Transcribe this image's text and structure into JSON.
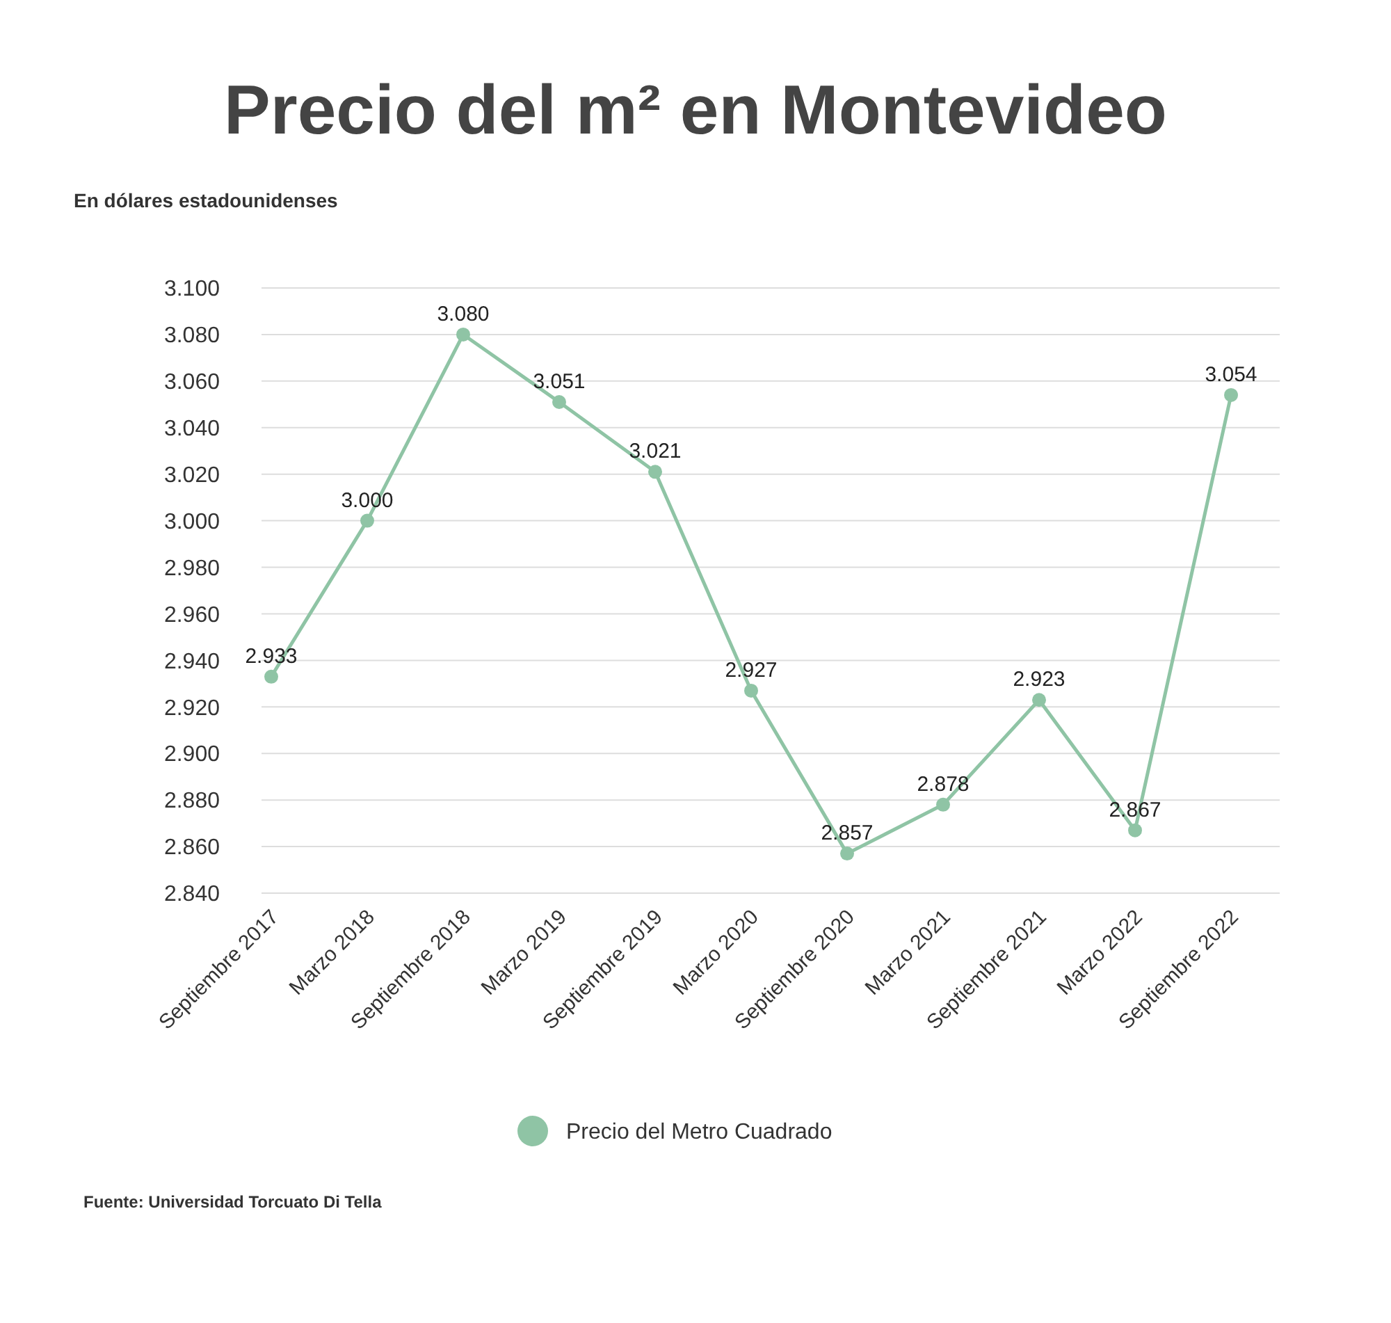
{
  "chart_data": {
    "type": "line",
    "title": "Precio del m² en Montevideo",
    "subtitle": "En dólares estadounidenses",
    "categories": [
      "Septiembre 2017",
      "Marzo 2018",
      "Septiembre 2018",
      "Marzo 2019",
      "Septiembre 2019",
      "Marzo 2020",
      "Septiembre 2020",
      "Marzo 2021",
      "Septiembre 2021",
      "Marzo 2022",
      "Septiembre 2022"
    ],
    "series": [
      {
        "name": "Precio del Metro Cuadrado",
        "color": "#8fc4a5",
        "values": [
          2933,
          3000,
          3080,
          3051,
          3021,
          2927,
          2857,
          2878,
          2923,
          2867,
          3054
        ],
        "value_labels": [
          "2.933",
          "3.000",
          "3.080",
          "3.051",
          "3.021",
          "2.927",
          "2.857",
          "2.878",
          "2.923",
          "2.867",
          "3.054"
        ]
      }
    ],
    "ylim": [
      2840,
      3100
    ],
    "yticks": [
      {
        "value": 2840,
        "label": "2.840"
      },
      {
        "value": 2860,
        "label": "2.860"
      },
      {
        "value": 2880,
        "label": "2.880"
      },
      {
        "value": 2900,
        "label": "2.900"
      },
      {
        "value": 2920,
        "label": "2.920"
      },
      {
        "value": 2940,
        "label": "2.940"
      },
      {
        "value": 2960,
        "label": "2.960"
      },
      {
        "value": 2980,
        "label": "2.980"
      },
      {
        "value": 3000,
        "label": "3.000"
      },
      {
        "value": 3020,
        "label": "3.020"
      },
      {
        "value": 3040,
        "label": "3.040"
      },
      {
        "value": 3060,
        "label": "3.060"
      },
      {
        "value": 3080,
        "label": "3.080"
      },
      {
        "value": 3100,
        "label": "3.100"
      }
    ],
    "grid": "y",
    "legend": "bottom",
    "marker": "circle",
    "annotations": [
      "Fuente: Universidad Torcuato Di Tella"
    ]
  }
}
